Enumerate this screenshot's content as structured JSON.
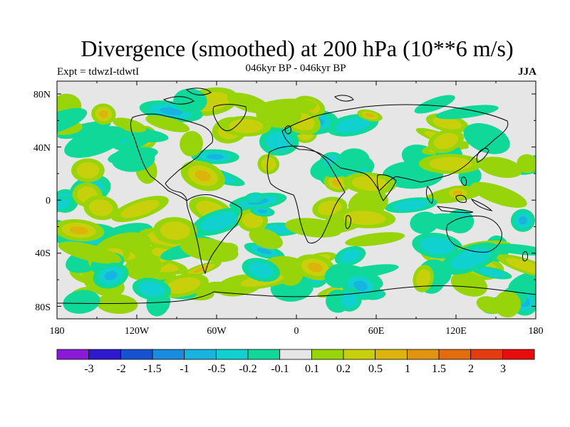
{
  "title": "Divergence (smoothed) at 200 hPa (10**6 m/s)",
  "subtitle": "046kyr BP - 046kyr BP",
  "left_label": "Expt = tdwzI-tdwtI",
  "right_label": "JJA",
  "map": {
    "lon_ticks": [
      "180",
      "120W",
      "60W",
      "0",
      "60E",
      "120E",
      "180"
    ],
    "lat_ticks": [
      "80N",
      "40N",
      "0",
      "40S",
      "80S"
    ],
    "background_color": "#e6e6e6",
    "land_outline_color": "#000000"
  },
  "colorbar": {
    "colors": [
      "#8a1ad8",
      "#2e18d0",
      "#1652d0",
      "#1a8ce0",
      "#18b4e0",
      "#10d0d0",
      "#10d898",
      "#e6e6e6",
      "#98d40a",
      "#c8d00c",
      "#dcb40c",
      "#e09410",
      "#e46c0c",
      "#e43c10",
      "#e80c0c"
    ],
    "labels": [
      "-3",
      "-2",
      "-1.5",
      "-1",
      "-0.5",
      "-0.2",
      "-0.1",
      "0.1",
      "0.2",
      "0.5",
      "1",
      "1.5",
      "2",
      "3"
    ]
  }
}
